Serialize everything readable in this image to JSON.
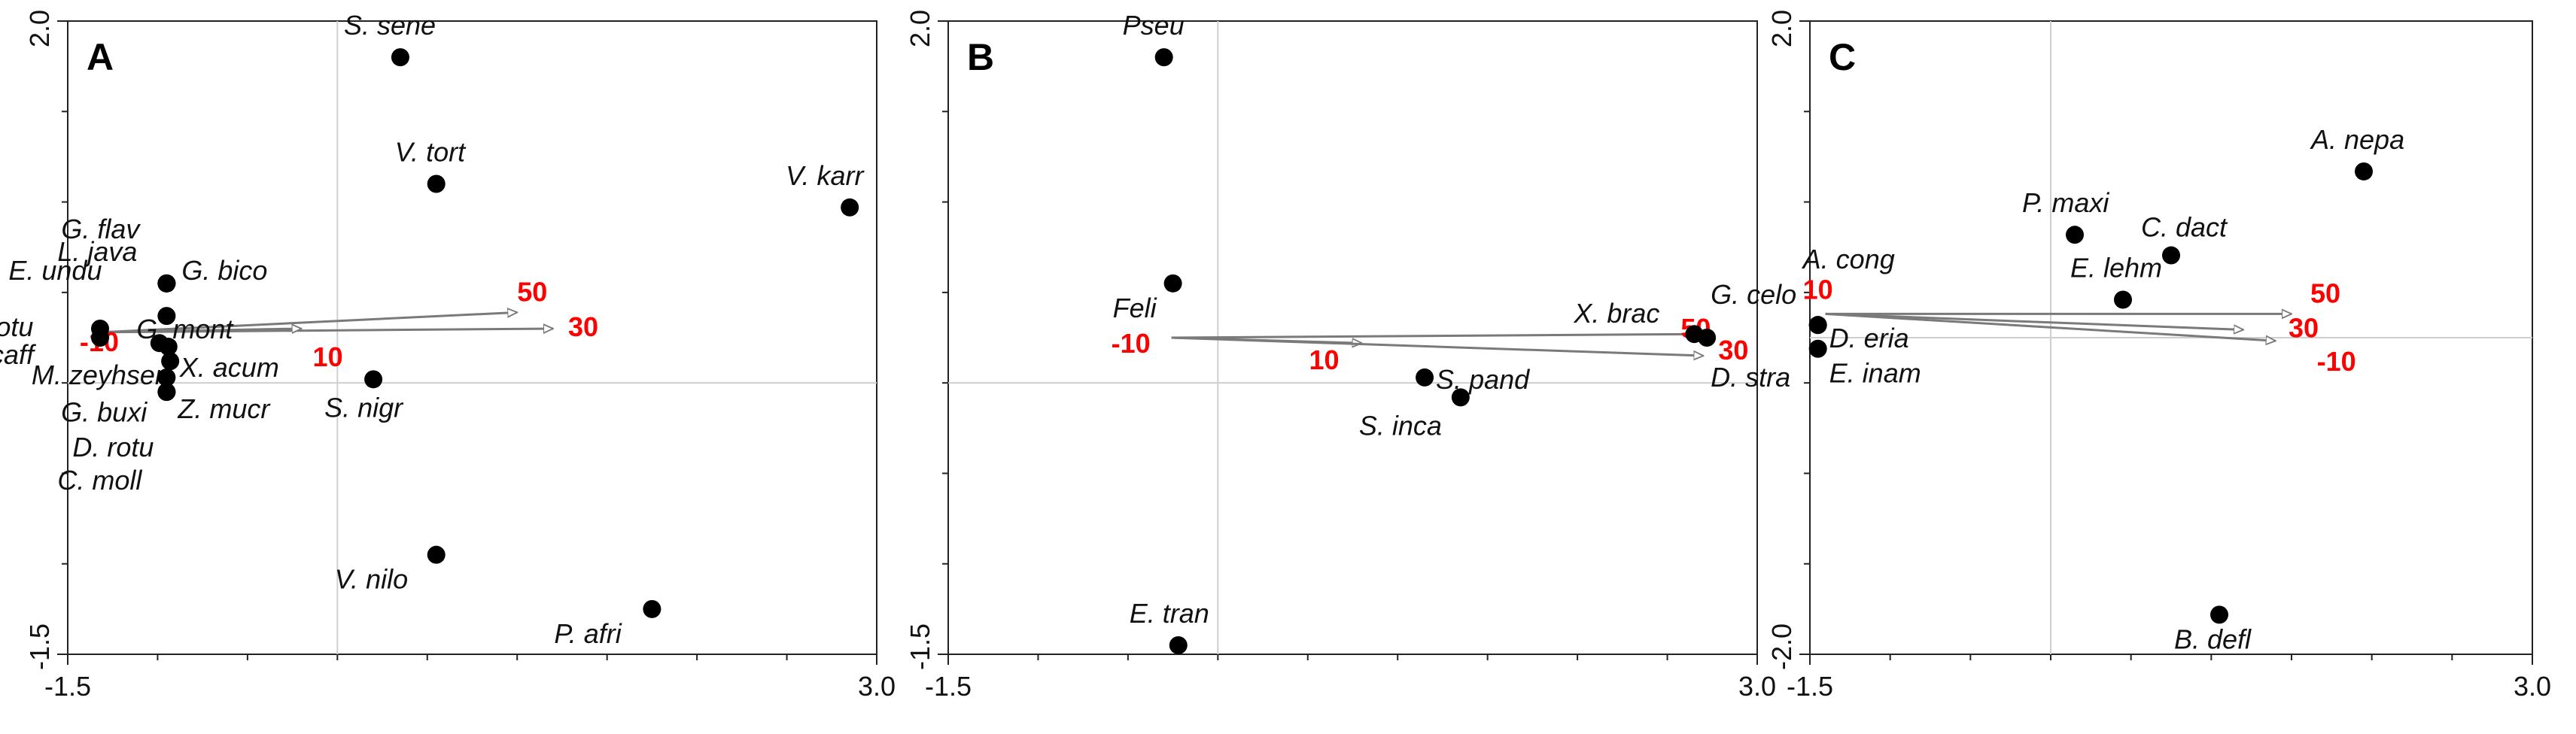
{
  "chart_data": [
    {
      "type": "scatter",
      "panel": "A",
      "xlim": [
        -1.5,
        3.0
      ],
      "ylim": [
        -1.5,
        2.0
      ],
      "x_ticks": [
        "-1.5",
        "3.0"
      ],
      "y_ticks": [
        "2.0",
        "-1.5"
      ],
      "grid": false,
      "zero_lines": true,
      "points": [
        {
          "label": "S. sene",
          "x": 0.35,
          "y": 1.8
        },
        {
          "label": "V. tort",
          "x": 0.55,
          "y": 1.1
        },
        {
          "label": "V. karr",
          "x": 2.85,
          "y": 0.97
        },
        {
          "label": "G. flav",
          "x": -0.95,
          "y": 0.55
        },
        {
          "label": "L. java",
          "x": -0.95,
          "y": 0.55
        },
        {
          "label": "G. bico",
          "x": -0.95,
          "y": 0.55
        },
        {
          "label": "E. undu",
          "x": -0.95,
          "y": 0.55
        },
        {
          "label": "G. mont",
          "x": -0.95,
          "y": 0.37
        },
        {
          "label": "P. rotu",
          "x": -1.32,
          "y": 0.3
        },
        {
          "label": "S. caff",
          "x": -1.32,
          "y": 0.25
        },
        {
          "label": "M. zeyhseri",
          "x": -0.99,
          "y": 0.22
        },
        {
          "label": "X. acum",
          "x": -0.94,
          "y": 0.2
        },
        {
          "label": "G. buxi",
          "x": -0.93,
          "y": 0.12
        },
        {
          "label": "D. rotu",
          "x": -0.95,
          "y": 0.03
        },
        {
          "label": "Z. mucr",
          "x": -0.95,
          "y": -0.05
        },
        {
          "label": "C. moll",
          "x": -0.95,
          "y": -0.05
        },
        {
          "label": "S. nigr",
          "x": 0.2,
          "y": 0.02
        },
        {
          "label": "V. nilo",
          "x": 0.55,
          "y": -0.95
        },
        {
          "label": "P. afri",
          "x": 1.75,
          "y": -1.25
        }
      ],
      "env_vectors": [
        {
          "label": "50",
          "x": 1.0,
          "y": 0.39
        },
        {
          "label": "30",
          "x": 1.2,
          "y": 0.3
        },
        {
          "label": "10",
          "x": -0.2,
          "y": 0.3
        },
        {
          "label": "-10",
          "x": -1.35,
          "y": 0.28
        }
      ]
    },
    {
      "type": "scatter",
      "panel": "B",
      "xlim": [
        -1.5,
        3.0
      ],
      "ylim": [
        -1.5,
        2.0
      ],
      "x_ticks": [
        "-1.5",
        "3.0"
      ],
      "y_ticks": [
        "2.0",
        "-1.5"
      ],
      "grid": false,
      "zero_lines": true,
      "points": [
        {
          "label": "Pseu",
          "x": -0.3,
          "y": 1.8
        },
        {
          "label": "Feli",
          "x": -0.25,
          "y": 0.55
        },
        {
          "label": "X. brac",
          "x": 2.65,
          "y": 0.27
        },
        {
          "label": "G. celo",
          "x": 2.72,
          "y": 0.25
        },
        {
          "label": "S. pand",
          "x": 1.15,
          "y": 0.03
        },
        {
          "label": "S. inca",
          "x": 1.35,
          "y": -0.08
        },
        {
          "label": "E. tran",
          "x": -0.22,
          "y": -1.45
        }
      ],
      "env_vectors": [
        {
          "label": "-10",
          "x": -0.3,
          "y": 0.25
        },
        {
          "label": "10",
          "x": 0.8,
          "y": 0.22
        },
        {
          "label": "50",
          "x": 2.7,
          "y": 0.27
        },
        {
          "label": "30",
          "x": 2.7,
          "y": 0.15
        }
      ],
      "extra_labels": [
        {
          "label": "D. stra",
          "x": 2.72,
          "y": 0.25
        }
      ]
    },
    {
      "type": "scatter",
      "panel": "C",
      "xlim": [
        -1.5,
        3.0
      ],
      "ylim": [
        -2.0,
        2.0
      ],
      "x_ticks": [
        "-1.5",
        "3.0"
      ],
      "y_ticks": [
        "2.0",
        "-2.0"
      ],
      "grid": false,
      "zero_lines": true,
      "points": [
        {
          "label": "A. nepa",
          "x": 1.95,
          "y": 1.05
        },
        {
          "label": "P. maxi",
          "x": 0.15,
          "y": 0.65
        },
        {
          "label": "C. dact",
          "x": 0.75,
          "y": 0.52
        },
        {
          "label": "E. lehm",
          "x": 0.45,
          "y": 0.24
        },
        {
          "label": "A. cong",
          "x": -1.45,
          "y": 0.08
        },
        {
          "label": "D. eria",
          "x": -1.45,
          "y": 0.08
        },
        {
          "label": "E. inam",
          "x": -1.45,
          "y": -0.07
        },
        {
          "label": "B. defl",
          "x": 1.05,
          "y": -1.75
        }
      ],
      "env_vectors": [
        {
          "label": "10",
          "x": -1.45,
          "y": 0.15
        },
        {
          "label": "50",
          "x": 1.5,
          "y": 0.15
        },
        {
          "label": "30",
          "x": 1.2,
          "y": 0.05
        },
        {
          "label": "-10",
          "x": 1.4,
          "y": -0.02
        }
      ]
    }
  ]
}
